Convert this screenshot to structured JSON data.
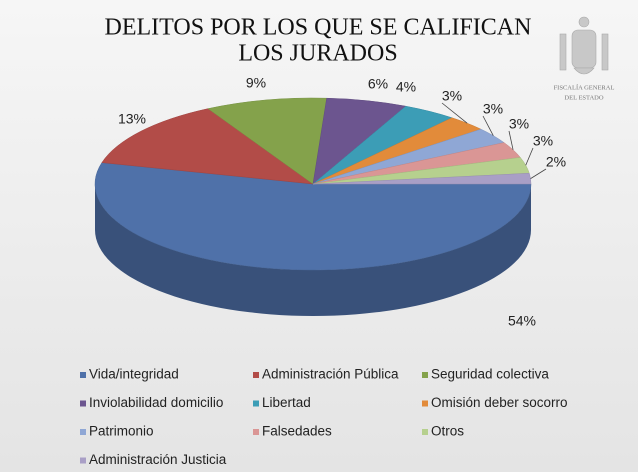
{
  "chart_data": {
    "type": "pie3d",
    "title": [
      "DELITOS POR LOS QUE SE CALIFICAN",
      "LOS JURADOS"
    ],
    "logo_text": [
      "FISCALÍA GENERAL",
      "DEL ESTADO"
    ],
    "categories": [
      "Vida/integridad",
      "Administración Pública",
      "Seguridad colectiva",
      "Inviolabilidad domicilio",
      "Libertad",
      "Omisión deber socorro",
      "Patrimonio",
      "Falsedades",
      "Otros",
      "Administración Justicia"
    ],
    "values": [
      54,
      13,
      9,
      6,
      4,
      3,
      3,
      3,
      3,
      2
    ],
    "value_labels": [
      "54%",
      "13%",
      "9%",
      "6%",
      "4%",
      "3%",
      "3%",
      "3%",
      "3%",
      "2%"
    ],
    "colors": [
      "#4f71a9",
      "#b24c48",
      "#84a24b",
      "#6c558f",
      "#3c9db6",
      "#e28b3a",
      "#8fa7d5",
      "#da9695",
      "#b6d08e",
      "#a99fc6"
    ],
    "legend": "bottom"
  }
}
